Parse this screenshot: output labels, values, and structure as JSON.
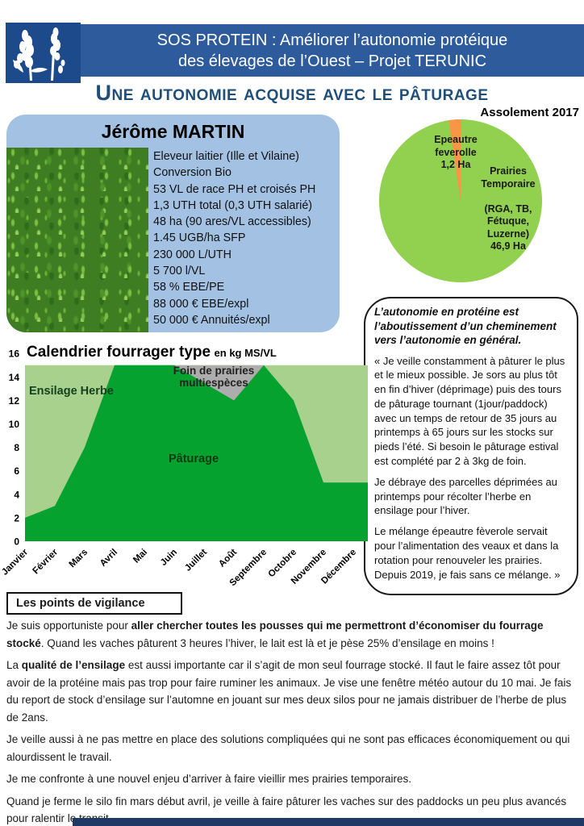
{
  "header": {
    "line1": "SOS PROTEIN : Améliorer l’autonomie protéique",
    "line2": "des élevages de l’Ouest – Projet TERUNIC"
  },
  "page_title": "Une autonomie acquise avec le pâturage",
  "farmer_card": {
    "name": "Jérôme MARTIN",
    "photo": "grass-clover-pasture-photo",
    "facts": [
      "Eleveur laitier (Ille et Vilaine)",
      "Conversion Bio",
      "53 VL de race PH et croisés PH",
      "1,3 UTH total (0,3 UTH salarié)",
      "48 ha (90 ares/VL accessibles)",
      "1.45 UGB/ha SFP",
      "230 000 L/UTH",
      "5 700 l/VL",
      "58 % EBE/PE",
      "88 000 € EBE/expl",
      "50 000 € Annuités/expl"
    ]
  },
  "chart_data": [
    {
      "type": "pie",
      "title": "Assolement 2017",
      "slices": [
        {
          "label": "Prairies Temporaire (RGA, TB, Fétuque, Luzerne)",
          "value": 46.9,
          "unit": "Ha",
          "color": "#92d050"
        },
        {
          "label": "Epeautre feverolle",
          "value": 1.2,
          "unit": "Ha",
          "color": "#f79646"
        }
      ],
      "label_epeautre": "Epeautre\nfeverolle\n1,2 Ha",
      "label_prairies": "Prairies\nTemporaire\n\n(RGA, TB,\nFétuque,\nLuzerne)\n46,9 Ha",
      "legend_position": "inside"
    },
    {
      "type": "area",
      "title": "Calendrier fourrager type",
      "subtitle": "en kg MS/VL",
      "categories": [
        "Janvier",
        "Février",
        "Mars",
        "Avril",
        "Mai",
        "Juin",
        "Juillet",
        "Août",
        "Septembre",
        "Octobre",
        "Novembre",
        "Décembre"
      ],
      "series": [
        {
          "name": "Pâturage",
          "color": "#05a22f",
          "values": [
            2,
            3,
            8,
            15,
            15,
            15,
            13.5,
            12,
            15,
            12,
            5,
            5
          ]
        },
        {
          "name": "Foin de prairies multiespèces",
          "color": "#adadad",
          "values": [
            0,
            0,
            0,
            0,
            0,
            0,
            1.5,
            3,
            0,
            0,
            0,
            0
          ]
        },
        {
          "name": "Ensilage Herbe",
          "color": "#a9d18e",
          "values": [
            13,
            12,
            7,
            0,
            0,
            0,
            0,
            0,
            0,
            3,
            10,
            10
          ]
        }
      ],
      "stack_total": 15,
      "ylim": [
        0,
        16
      ],
      "ytick_step": 2,
      "grid": false,
      "area_labels": {
        "ensilage": "Ensilage Herbe",
        "foin": "Foin  de prairies\nmultiespèces",
        "paturage": "Pâturage"
      }
    }
  ],
  "quote_box": {
    "heading": "L’autonomie en protéine est l’aboutissement d’un cheminement  vers l’autonomie en général.",
    "p1": "« Je veille  constamment à pâturer le plus et le mieux possible. Je sors au plus tôt en fin d’hiver (déprimage) puis des tours de pâturage tournant (1jour/paddock) avec un temps de retour de 35 jours au printemps à 65 jours sur les stocks sur pieds l’été.  Si besoin le pâturage estival est complété par 2 à 3kg de foin.",
    "p2": "Je débraye des parcelles déprimées au printemps pour récolter l’herbe en ensilage pour l’hiver.",
    "p3": "Le mélange épeautre fèverole servait pour l’alimentation des veaux et dans la rotation pour renouveler les prairies. Depuis 2019, je fais sans ce mélange. »"
  },
  "vigilance": {
    "title": "Les points de vigilance",
    "p1_pre": "Je suis opportuniste pour ",
    "p1_bold": "aller chercher toutes les pousses qui me permettront d’économiser  du fourrage stocké",
    "p1_post": ". Quand les vaches pâturent 3 heures l’hiver, le lait est là et je pèse 25% d’ensilage en moins !",
    "p2_pre": "La ",
    "p2_bold": "qualité de l’ensilage",
    "p2_post": " est aussi importante car il s’agit de mon seul fourrage stocké. Il faut le faire assez tôt pour avoir de la protéine mais pas trop pour faire ruminer les animaux. Je vise une fenêtre météo autour du 10 mai. Je fais du report de stock d’ensilage sur l’automne en jouant sur mes deux silos pour ne jamais distribuer de l’herbe de plus de 2ans.",
    "p3": "Je veille aussi à ne pas mettre en place des solutions compliquées qui ne sont pas efficaces économiquement  ou qui alourdissent le travail.",
    "p4": "Je me confronte à une nouvel enjeu d’arriver à faire vieillir mes prairies temporaires.",
    "p5": "Quand je ferme le silo fin mars début avril, je veille à faire pâturer les vaches sur des paddocks un peu plus avancés pour ralentir le transit."
  },
  "colors": {
    "header_band": "#2e5b9c",
    "logo_box": "#1d4a8a",
    "title_blue": "#1f4e79",
    "card_blue": "#a3c2e3",
    "footer_bar": "#1f3864"
  }
}
